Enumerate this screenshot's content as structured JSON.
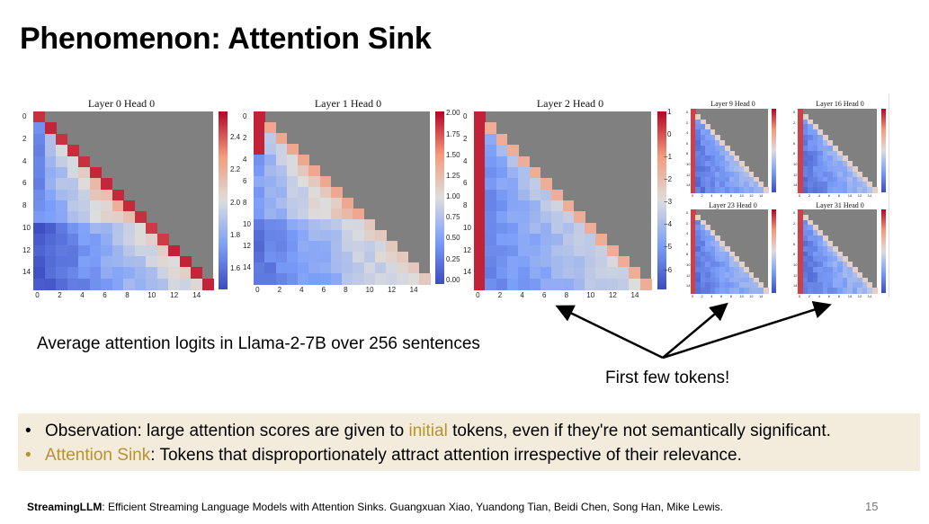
{
  "title": "Phenomenon: Attention Sink",
  "panels": {
    "p0": {
      "title": "Layer 0 Head 0",
      "cb_ticks": [
        "2.4",
        "2.2",
        "2.0",
        "1.8",
        "1.6"
      ]
    },
    "p1": {
      "title": "Layer 1 Head 0",
      "cb_ticks": [
        "2.00",
        "1.75",
        "1.50",
        "1.25",
        "1.00",
        "0.75",
        "0.50",
        "0.25",
        "0.00"
      ]
    },
    "p2": {
      "title": "Layer 2 Head 0",
      "cb_ticks": [
        "1",
        "0",
        "−1",
        "−2",
        "−3",
        "−4",
        "−5",
        "−6"
      ]
    },
    "p9": {
      "title": "Layer 9 Head 0"
    },
    "p16": {
      "title": "Layer 16 Head 0"
    },
    "p23": {
      "title": "Layer 23 Head 0"
    },
    "p31": {
      "title": "Layer 31 Head 0"
    }
  },
  "axis_ticks": [
    "0",
    "2",
    "4",
    "6",
    "8",
    "10",
    "12",
    "14"
  ],
  "caption": "Average attention logits in Llama-2-7B over 256 sentences",
  "first_few": "First few tokens!",
  "observations": {
    "line1_pre": "Observation: large attention scores are given to ",
    "line1_accent": "initial",
    "line1_post": " tokens, even if they're not semantically significant.",
    "line2_accent": "Attention Sink",
    "line2_post": ": Tokens that disproportionately attract attention irrespective of their relevance."
  },
  "footer": {
    "bold": "StreamingLLM",
    "rest": ": Efficient Streaming Language Models with Attention Sinks. Guangxuan Xiao, Yuandong Tian, Beidi Chen, Song Han, Mike Lewis."
  },
  "page_number": "15",
  "colors": {
    "accent": "#b8922f",
    "masked": "#808080",
    "box": "#f3ecdc"
  }
}
